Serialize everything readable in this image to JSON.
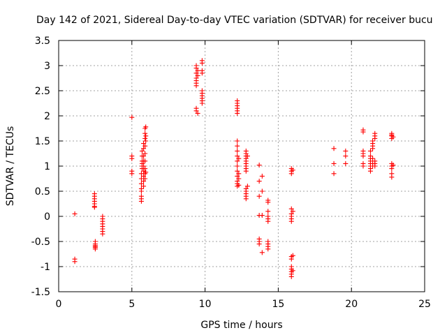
{
  "chart_data": {
    "type": "scatter",
    "title": "Day 142 of 2021, Sidereal Day-to-day VTEC variation (SDTVAR) for receiver bucu",
    "xlabel": "GPS time / hours",
    "ylabel": "SDTVAR / TECUs",
    "xlim": [
      0,
      25
    ],
    "ylim": [
      -1.5,
      3.5
    ],
    "xticks": [
      0,
      5,
      10,
      15,
      20,
      25
    ],
    "xtick_labels": [
      "0",
      "5",
      "10",
      "15",
      "20",
      "25"
    ],
    "yticks": [
      -1.5,
      -1,
      -0.5,
      0,
      0.5,
      1,
      1.5,
      2,
      2.5,
      3,
      3.5
    ],
    "ytick_labels": [
      "-1.5",
      "-1",
      "-0.5",
      "0",
      "0.5",
      "1",
      "1.5",
      "2",
      "2.5",
      "3",
      "3.5"
    ],
    "grid": true,
    "marker": "+",
    "color": "#ff0000",
    "series": [
      {
        "name": "SDTVAR",
        "points": [
          [
            1.1,
            0.05
          ],
          [
            1.1,
            -0.85
          ],
          [
            1.1,
            -0.9
          ],
          [
            2.45,
            0.45
          ],
          [
            2.45,
            0.4
          ],
          [
            2.45,
            0.35
          ],
          [
            2.45,
            0.3
          ],
          [
            2.45,
            0.25
          ],
          [
            2.45,
            0.2
          ],
          [
            2.45,
            0.18
          ],
          [
            2.5,
            -0.5
          ],
          [
            2.5,
            -0.55
          ],
          [
            2.5,
            -0.58
          ],
          [
            2.5,
            -0.6
          ],
          [
            2.5,
            -0.62
          ],
          [
            2.5,
            -0.65
          ],
          [
            3.0,
            0.0
          ],
          [
            3.0,
            -0.05
          ],
          [
            3.0,
            -0.1
          ],
          [
            3.0,
            -0.15
          ],
          [
            3.0,
            -0.2
          ],
          [
            3.0,
            -0.25
          ],
          [
            3.0,
            -0.3
          ],
          [
            3.0,
            -0.35
          ],
          [
            5.0,
            1.97
          ],
          [
            5.0,
            1.2
          ],
          [
            5.0,
            1.15
          ],
          [
            5.0,
            0.9
          ],
          [
            5.0,
            0.85
          ],
          [
            5.65,
            0.3
          ],
          [
            5.65,
            0.35
          ],
          [
            5.65,
            0.4
          ],
          [
            5.65,
            0.5
          ],
          [
            5.65,
            0.55
          ],
          [
            5.65,
            0.65
          ],
          [
            5.65,
            0.75
          ],
          [
            5.65,
            0.85
          ],
          [
            5.7,
            0.95
          ],
          [
            5.7,
            1.0
          ],
          [
            5.7,
            1.05
          ],
          [
            5.7,
            1.1
          ],
          [
            5.7,
            1.2
          ],
          [
            5.7,
            1.3
          ],
          [
            5.8,
            0.6
          ],
          [
            5.8,
            0.7
          ],
          [
            5.8,
            0.8
          ],
          [
            5.8,
            0.9
          ],
          [
            5.8,
            1.0
          ],
          [
            5.8,
            1.1
          ],
          [
            5.8,
            1.2
          ],
          [
            5.8,
            1.35
          ],
          [
            5.8,
            1.45
          ],
          [
            5.9,
            0.75
          ],
          [
            5.9,
            0.85
          ],
          [
            5.9,
            0.95
          ],
          [
            5.9,
            1.1
          ],
          [
            5.9,
            1.25
          ],
          [
            5.9,
            1.4
          ],
          [
            5.9,
            1.55
          ],
          [
            5.9,
            1.65
          ],
          [
            5.9,
            1.75
          ],
          [
            5.95,
            1.5
          ],
          [
            5.95,
            1.6
          ],
          [
            5.95,
            1.78
          ],
          [
            5.95,
            0.88
          ],
          [
            9.4,
            3.0
          ],
          [
            9.4,
            2.95
          ],
          [
            9.4,
            2.85
          ],
          [
            9.4,
            2.75
          ],
          [
            9.4,
            2.7
          ],
          [
            9.4,
            2.65
          ],
          [
            9.4,
            2.6
          ],
          [
            9.4,
            2.15
          ],
          [
            9.4,
            2.1
          ],
          [
            9.5,
            2.9
          ],
          [
            9.5,
            2.8
          ],
          [
            9.5,
            2.05
          ],
          [
            9.8,
            3.1
          ],
          [
            9.8,
            3.05
          ],
          [
            9.8,
            2.9
          ],
          [
            9.8,
            2.85
          ],
          [
            9.8,
            2.5
          ],
          [
            9.8,
            2.45
          ],
          [
            9.8,
            2.4
          ],
          [
            9.8,
            2.35
          ],
          [
            9.8,
            2.3
          ],
          [
            9.8,
            2.25
          ],
          [
            12.2,
            2.3
          ],
          [
            12.2,
            2.25
          ],
          [
            12.2,
            2.2
          ],
          [
            12.2,
            2.15
          ],
          [
            12.2,
            2.1
          ],
          [
            12.2,
            2.05
          ],
          [
            12.2,
            1.5
          ],
          [
            12.2,
            1.4
          ],
          [
            12.2,
            1.3
          ],
          [
            12.2,
            1.2
          ],
          [
            12.2,
            1.1
          ],
          [
            12.2,
            1.0
          ],
          [
            12.2,
            0.9
          ],
          [
            12.2,
            0.8
          ],
          [
            12.2,
            0.7
          ],
          [
            12.2,
            0.65
          ],
          [
            12.2,
            0.6
          ],
          [
            12.3,
            1.15
          ],
          [
            12.3,
            0.85
          ],
          [
            12.3,
            0.75
          ],
          [
            12.3,
            0.62
          ],
          [
            12.8,
            1.3
          ],
          [
            12.8,
            1.25
          ],
          [
            12.8,
            1.2
          ],
          [
            12.8,
            1.15
          ],
          [
            12.8,
            1.1
          ],
          [
            12.8,
            1.05
          ],
          [
            12.8,
            1.0
          ],
          [
            12.8,
            0.95
          ],
          [
            12.8,
            0.9
          ],
          [
            12.8,
            0.55
          ],
          [
            12.8,
            0.5
          ],
          [
            12.8,
            0.45
          ],
          [
            12.8,
            0.4
          ],
          [
            12.8,
            0.35
          ],
          [
            12.9,
            1.2
          ],
          [
            12.9,
            0.6
          ],
          [
            13.7,
            1.02
          ],
          [
            13.7,
            0.7
          ],
          [
            13.7,
            0.4
          ],
          [
            13.7,
            0.02
          ],
          [
            13.7,
            -0.45
          ],
          [
            13.7,
            -0.5
          ],
          [
            13.7,
            -0.55
          ],
          [
            13.9,
            0.8
          ],
          [
            13.9,
            0.5
          ],
          [
            13.9,
            0.02
          ],
          [
            13.9,
            -0.72
          ],
          [
            14.3,
            0.32
          ],
          [
            14.3,
            0.28
          ],
          [
            14.3,
            0.1
          ],
          [
            14.3,
            0.0
          ],
          [
            14.3,
            -0.05
          ],
          [
            14.3,
            -0.1
          ],
          [
            14.3,
            -0.5
          ],
          [
            14.3,
            -0.55
          ],
          [
            14.3,
            -0.6
          ],
          [
            14.3,
            -0.65
          ],
          [
            15.9,
            0.95
          ],
          [
            15.9,
            0.9
          ],
          [
            15.9,
            0.85
          ],
          [
            15.9,
            0.15
          ],
          [
            15.9,
            0.05
          ],
          [
            15.9,
            0.0
          ],
          [
            15.9,
            -0.05
          ],
          [
            15.9,
            -0.1
          ],
          [
            15.9,
            -0.8
          ],
          [
            15.9,
            -0.85
          ],
          [
            15.9,
            -1.0
          ],
          [
            15.9,
            -1.05
          ],
          [
            15.9,
            -1.1
          ],
          [
            15.9,
            -1.15
          ],
          [
            15.9,
            -1.2
          ],
          [
            16.0,
            0.92
          ],
          [
            16.0,
            0.1
          ],
          [
            16.0,
            -0.78
          ],
          [
            16.0,
            -1.08
          ],
          [
            18.8,
            1.35
          ],
          [
            18.8,
            1.05
          ],
          [
            18.8,
            0.85
          ],
          [
            19.6,
            1.3
          ],
          [
            19.6,
            1.2
          ],
          [
            19.6,
            1.05
          ],
          [
            20.8,
            1.72
          ],
          [
            20.8,
            1.68
          ],
          [
            20.8,
            1.3
          ],
          [
            20.8,
            1.25
          ],
          [
            20.8,
            1.2
          ],
          [
            20.8,
            1.05
          ],
          [
            20.8,
            1.0
          ],
          [
            21.3,
            1.3
          ],
          [
            21.3,
            1.2
          ],
          [
            21.3,
            1.15
          ],
          [
            21.3,
            1.1
          ],
          [
            21.3,
            1.05
          ],
          [
            21.3,
            1.0
          ],
          [
            21.3,
            0.95
          ],
          [
            21.3,
            0.9
          ],
          [
            21.45,
            1.5
          ],
          [
            21.45,
            1.45
          ],
          [
            21.45,
            1.4
          ],
          [
            21.45,
            1.35
          ],
          [
            21.45,
            1.15
          ],
          [
            21.45,
            1.05
          ],
          [
            21.45,
            1.0
          ],
          [
            21.6,
            1.65
          ],
          [
            21.6,
            1.6
          ],
          [
            21.6,
            1.55
          ],
          [
            21.6,
            1.1
          ],
          [
            21.6,
            1.05
          ],
          [
            21.6,
            1.0
          ],
          [
            22.75,
            1.65
          ],
          [
            22.75,
            1.62
          ],
          [
            22.75,
            1.6
          ],
          [
            22.75,
            1.55
          ],
          [
            22.75,
            1.05
          ],
          [
            22.75,
            1.0
          ],
          [
            22.75,
            0.95
          ],
          [
            22.75,
            0.85
          ],
          [
            22.75,
            0.78
          ],
          [
            22.85,
            1.58
          ],
          [
            22.85,
            1.02
          ]
        ]
      }
    ]
  }
}
